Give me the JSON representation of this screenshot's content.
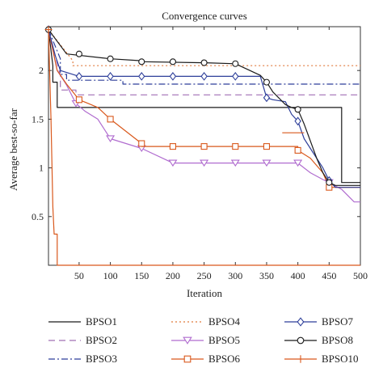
{
  "chart_data": {
    "type": "line",
    "title": "Convergence curves",
    "xlabel": "Iteration",
    "ylabel": "Average best-so-far",
    "xlim": [
      1,
      500
    ],
    "ylim": [
      0,
      2.45
    ],
    "xticks": [
      50,
      100,
      150,
      200,
      250,
      300,
      350,
      400,
      450,
      500
    ],
    "yticks": [
      0.5,
      1,
      1.5,
      2
    ],
    "xtick_labels": [
      "50",
      "100",
      "150",
      "200",
      "250",
      "300",
      "350",
      "400",
      "450",
      "500"
    ],
    "ytick_labels": [
      "0.5",
      "1",
      "1.5",
      "2"
    ],
    "grid": false,
    "legend_placement": "bottom",
    "series": [
      {
        "name": "BPSO1",
        "color": "#1a1a1a",
        "dash": "",
        "marker": "none",
        "x": [
          1,
          8,
          8,
          15,
          15,
          200,
          200,
          380,
          380,
          470,
          470,
          500
        ],
        "y": [
          2.42,
          2.05,
          1.88,
          1.88,
          1.62,
          1.62,
          1.62,
          1.62,
          1.62,
          1.62,
          0.85,
          0.85
        ]
      },
      {
        "name": "BPSO2",
        "color": "#a16fb5",
        "dash": "8,5",
        "marker": "none",
        "x": [
          1,
          20,
          20,
          45,
          45,
          500
        ],
        "y": [
          2.42,
          1.95,
          1.8,
          1.8,
          1.75,
          1.75
        ]
      },
      {
        "name": "BPSO3",
        "color": "#2e3f9a",
        "dash": "8,3,2,3",
        "marker": "none",
        "x": [
          1,
          20,
          20,
          30,
          30,
          120,
          120,
          500
        ],
        "y": [
          2.42,
          2.12,
          1.96,
          1.96,
          1.9,
          1.9,
          1.86,
          1.86
        ]
      },
      {
        "name": "BPSO4",
        "color": "#e07a3c",
        "dash": "2,3",
        "marker": "none",
        "x": [
          1,
          40,
          40,
          500
        ],
        "y": [
          2.42,
          2.1,
          2.05,
          2.05
        ]
      },
      {
        "name": "BPSO5",
        "color": "#b06ccf",
        "dash": "",
        "marker": "triangle",
        "x": [
          1,
          15,
          30,
          45,
          60,
          80,
          100,
          100,
          150,
          150,
          200,
          200,
          400,
          400,
          420,
          440,
          450,
          470,
          490,
          500
        ],
        "y": [
          2.42,
          2.0,
          1.85,
          1.66,
          1.58,
          1.5,
          1.3,
          1.3,
          1.2,
          1.2,
          1.05,
          1.05,
          1.05,
          1.05,
          0.95,
          0.88,
          0.85,
          0.78,
          0.65,
          0.65
        ],
        "marker_x": [
          45,
          100,
          150,
          200,
          250,
          300,
          350,
          400,
          450
        ],
        "marker_y": [
          1.66,
          1.3,
          1.2,
          1.05,
          1.05,
          1.05,
          1.05,
          1.05,
          0.85
        ]
      },
      {
        "name": "BPSO6",
        "color": "#d9581c",
        "dash": "",
        "marker": "square",
        "x": [
          1,
          15,
          30,
          50,
          65,
          80,
          100,
          100,
          150,
          150,
          400,
          400,
          420,
          440,
          450,
          450,
          500
        ],
        "y": [
          2.42,
          2.0,
          1.86,
          1.7,
          1.66,
          1.62,
          1.5,
          1.5,
          1.25,
          1.22,
          1.22,
          1.18,
          1.1,
          0.95,
          0.8,
          0.8,
          0.8
        ],
        "marker_x": [
          50,
          100,
          150,
          200,
          250,
          300,
          350,
          400,
          450
        ],
        "marker_y": [
          1.7,
          1.5,
          1.25,
          1.22,
          1.22,
          1.22,
          1.22,
          1.18,
          0.8
        ]
      },
      {
        "name": "BPSO7",
        "color": "#2e3f9a",
        "dash": "",
        "marker": "diamond",
        "x": [
          1,
          12,
          20,
          50,
          50,
          340,
          350,
          360,
          380,
          390,
          400,
          410,
          420,
          440,
          450,
          460,
          500
        ],
        "y": [
          2.42,
          2.15,
          2.0,
          1.94,
          1.94,
          1.94,
          1.72,
          1.7,
          1.68,
          1.55,
          1.48,
          1.3,
          1.2,
          1.0,
          0.87,
          0.8,
          0.8
        ],
        "marker_x": [
          1,
          50,
          100,
          150,
          200,
          250,
          300,
          350,
          400,
          450
        ],
        "marker_y": [
          2.42,
          1.94,
          1.94,
          1.94,
          1.94,
          1.94,
          1.94,
          1.72,
          1.48,
          0.87
        ]
      },
      {
        "name": "BPSO8",
        "color": "#1a1a1a",
        "dash": "",
        "marker": "circle",
        "x": [
          1,
          30,
          30,
          100,
          100,
          150,
          150,
          250,
          250,
          300,
          300,
          340,
          350,
          360,
          380,
          390,
          400,
          410,
          430,
          440,
          450,
          460,
          500
        ],
        "y": [
          2.42,
          2.17,
          2.17,
          2.12,
          2.12,
          2.1,
          2.09,
          2.08,
          2.08,
          2.07,
          2.07,
          1.95,
          1.88,
          1.78,
          1.65,
          1.62,
          1.6,
          1.45,
          1.1,
          0.95,
          0.85,
          0.82,
          0.82
        ],
        "marker_x": [
          1,
          50,
          100,
          150,
          200,
          250,
          300,
          350,
          400,
          450
        ],
        "marker_y": [
          2.42,
          2.17,
          2.12,
          2.09,
          2.09,
          2.08,
          2.07,
          1.88,
          1.6,
          0.85
        ]
      },
      {
        "name": "BPSO10",
        "color": "#d9581c",
        "dash": "",
        "marker": "plus",
        "x": [
          1,
          5,
          8,
          10,
          10,
          15,
          15,
          500
        ],
        "y": [
          2.42,
          1.5,
          0.6,
          0.32,
          0.32,
          0.32,
          0.0,
          0.0
        ],
        "marker_x": [
          1
        ],
        "marker_y": [
          2.42
        ]
      }
    ],
    "extra_segments": [
      {
        "series": "BPSO10",
        "x": [
          375,
          410
        ],
        "y": [
          1.36,
          1.36
        ]
      }
    ]
  },
  "legend": {
    "items": [
      "BPSO1",
      "BPSO2",
      "BPSO3",
      "BPSO4",
      "BPSO5",
      "BPSO6",
      "BPSO7",
      "BPSO8",
      "BPSO10"
    ]
  }
}
